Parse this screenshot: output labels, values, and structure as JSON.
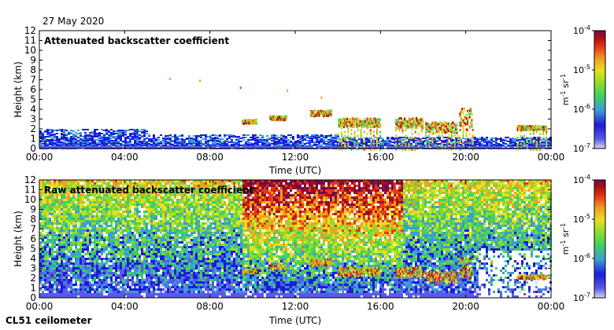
{
  "date": "27 May 2020",
  "instrument": "CL51 ceilometer",
  "chart_data": [
    {
      "type": "heatmap",
      "title": "Attenuated backscatter coefficient",
      "xlabel": "Time (UTC)",
      "ylabel": "Height (km)",
      "x_ticks": [
        "00:00",
        "04:00",
        "08:00",
        "12:00",
        "16:00",
        "20:00",
        "00:00"
      ],
      "x_range_hours": [
        0,
        24
      ],
      "y_ticks": [
        0,
        1,
        2,
        3,
        4,
        5,
        6,
        7,
        8,
        9,
        10,
        11,
        12
      ],
      "ylim": [
        0,
        12
      ],
      "colorbar": {
        "scale": "log",
        "label": "m-1 sr-1",
        "range": [
          1e-07,
          0.0001
        ],
        "ticks": [
          {
            "value": 0.0001,
            "label": "10-4"
          },
          {
            "value": 1e-05,
            "label": "10-5"
          },
          {
            "value": 1e-06,
            "label": "10-6"
          },
          {
            "value": 1e-07,
            "label": "10-7"
          }
        ],
        "colors": [
          "#d8d8f0",
          "#5a5ae6",
          "#1c1cd8",
          "#3a9bd8",
          "#42d060",
          "#8fdc2c",
          "#e8e020",
          "#f0a020",
          "#e83818",
          "#a81010",
          "#700a50"
        ]
      },
      "features": {
        "boundary_layer_top_km": 2.0,
        "cloud_layers": [
          {
            "start_h": 9.5,
            "end_h": 10.2,
            "base_km": 2.6,
            "top_km": 3.0
          },
          {
            "start_h": 10.8,
            "end_h": 11.6,
            "base_km": 3.0,
            "top_km": 3.4
          },
          {
            "start_h": 12.7,
            "end_h": 13.7,
            "base_km": 3.4,
            "top_km": 4.0
          },
          {
            "start_h": 14.0,
            "end_h": 16.0,
            "base_km": 2.3,
            "top_km": 3.2
          },
          {
            "start_h": 16.7,
            "end_h": 18.0,
            "base_km": 2.2,
            "top_km": 3.2
          },
          {
            "start_h": 18.1,
            "end_h": 19.6,
            "base_km": 1.7,
            "top_km": 2.8
          },
          {
            "start_h": 19.7,
            "end_h": 20.3,
            "base_km": 2.0,
            "top_km": 4.2
          },
          {
            "start_h": 22.4,
            "end_h": 23.8,
            "base_km": 2.0,
            "top_km": 2.4
          }
        ],
        "isolated_returns": [
          {
            "h": 6.1,
            "km": 7.2
          },
          {
            "h": 7.5,
            "km": 7.0
          },
          {
            "h": 9.4,
            "km": 6.3
          },
          {
            "h": 11.6,
            "km": 6.0
          },
          {
            "h": 13.2,
            "km": 5.3
          }
        ]
      }
    },
    {
      "type": "heatmap",
      "title": "Raw attenuated backscatter coefficient",
      "xlabel": "Time (UTC)",
      "ylabel": "Height (km)",
      "x_ticks": [
        "00:00",
        "04:00",
        "08:00",
        "12:00",
        "16:00",
        "20:00",
        "00:00"
      ],
      "x_range_hours": [
        0,
        24
      ],
      "y_ticks": [
        0,
        1,
        2,
        3,
        4,
        5,
        6,
        7,
        8,
        9,
        10,
        11,
        12
      ],
      "ylim": [
        0,
        12
      ],
      "colorbar": {
        "scale": "log",
        "label": "m-1 sr-1",
        "range": [
          1e-07,
          0.0001
        ],
        "ticks": [
          {
            "value": 0.0001,
            "label": "10-4"
          },
          {
            "value": 1e-05,
            "label": "10-5"
          },
          {
            "value": 1e-06,
            "label": "10-6"
          },
          {
            "value": 1e-07,
            "label": "10-7"
          }
        ]
      },
      "features": {
        "noise_peak_start_h": 9.5,
        "noise_peak_end_h": 17.0,
        "clear_sky_start_h": 20.5
      }
    }
  ]
}
